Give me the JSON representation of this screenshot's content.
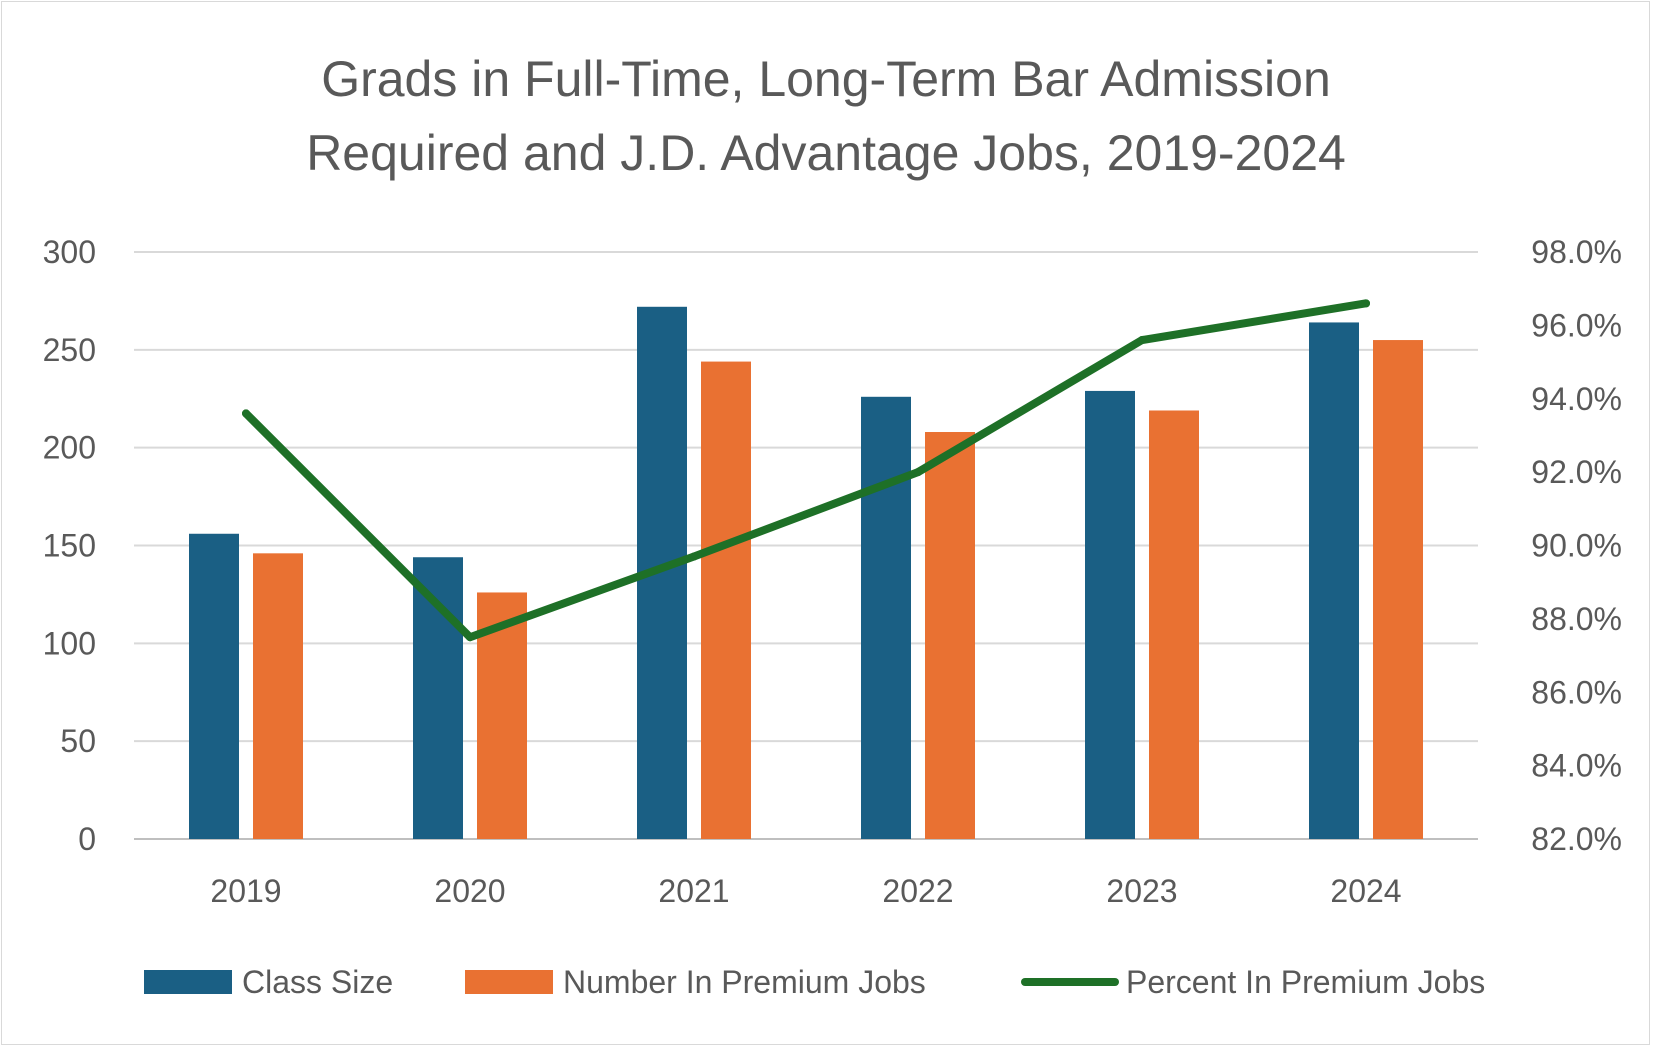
{
  "chart_data": {
    "type": "bar",
    "title_lines": [
      "Grads in Full-Time, Long-Term Bar Admission",
      "Required and J.D. Advantage Jobs, 2019-2024"
    ],
    "categories": [
      "2019",
      "2020",
      "2021",
      "2022",
      "2023",
      "2024"
    ],
    "series": [
      {
        "name": "Class Size",
        "type": "bar",
        "axis": "left",
        "color": "#1a5f84",
        "values": [
          156,
          144,
          272,
          226,
          229,
          264
        ]
      },
      {
        "name": "Number In Premium Jobs",
        "type": "bar",
        "axis": "left",
        "color": "#e97132",
        "values": [
          146,
          126,
          244,
          208,
          219,
          255
        ]
      },
      {
        "name": "Percent In Premium Jobs",
        "type": "line",
        "axis": "right",
        "color": "#1e7027",
        "values": [
          0.936,
          0.875,
          0.897,
          0.92,
          0.956,
          0.966
        ]
      }
    ],
    "y_left": {
      "ylim": [
        0,
        300
      ],
      "ticks": [
        "0",
        "50",
        "100",
        "150",
        "200",
        "250",
        "300"
      ],
      "tick_values": [
        0,
        50,
        100,
        150,
        200,
        250,
        300
      ]
    },
    "y_right": {
      "ylim": [
        0.82,
        0.98
      ],
      "ticks": [
        "82.0%",
        "84.0%",
        "86.0%",
        "88.0%",
        "90.0%",
        "92.0%",
        "94.0%",
        "96.0%",
        "98.0%"
      ],
      "tick_values": [
        0.82,
        0.84,
        0.86,
        0.88,
        0.9,
        0.92,
        0.94,
        0.96,
        0.98
      ]
    },
    "grid": true,
    "legend": "bottom"
  }
}
